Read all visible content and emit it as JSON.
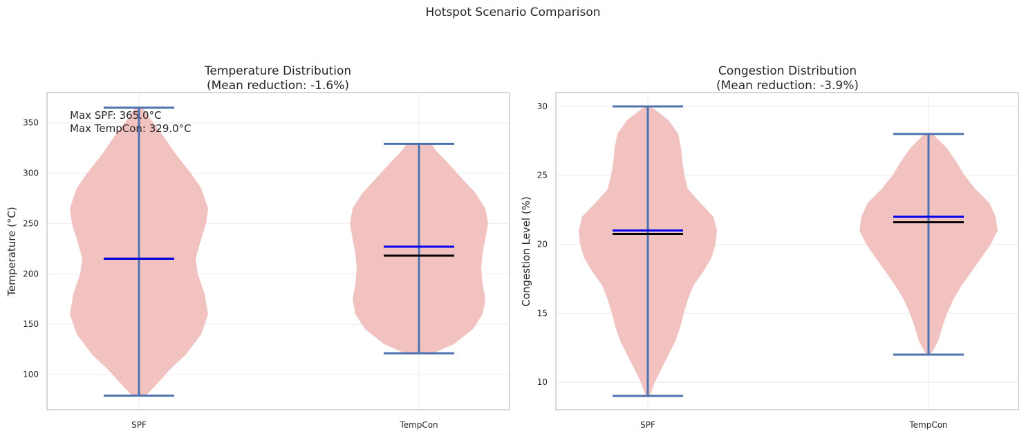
{
  "figure": {
    "suptitle": "Hotspot Scenario Comparison"
  },
  "colors": {
    "violin": "#f2c2c1",
    "whisker": "#4c72b0",
    "median": "#0000ee",
    "mean": "#000000",
    "frame": "#cccccc",
    "grid": "#ebebeb"
  },
  "chart_data": [
    {
      "type": "violin",
      "title_line1": "Temperature Distribution",
      "title_line2": "(Mean reduction: -1.6%)",
      "xlabel": "",
      "ylabel": "Temperature (°C)",
      "ylim": [
        65,
        380
      ],
      "yticks": [
        100,
        150,
        200,
        250,
        300,
        350
      ],
      "categories": [
        "SPF",
        "TempCon"
      ],
      "annotations": [
        "Max SPF: 365.0°C",
        "Max TempCon: 329.0°C"
      ],
      "series": [
        {
          "category": "SPF",
          "min": 79,
          "max": 365,
          "median": 215,
          "mean": 215,
          "density": [
            [
              79,
              10
            ],
            [
              90,
              25
            ],
            [
              105,
              45
            ],
            [
              120,
              68
            ],
            [
              140,
              90
            ],
            [
              160,
              100
            ],
            [
              180,
              95
            ],
            [
              200,
              85
            ],
            [
              215,
              82
            ],
            [
              230,
              88
            ],
            [
              250,
              97
            ],
            [
              265,
              100
            ],
            [
              285,
              90
            ],
            [
              300,
              75
            ],
            [
              320,
              52
            ],
            [
              340,
              32
            ],
            [
              355,
              15
            ],
            [
              365,
              6
            ]
          ]
        },
        {
          "category": "TempCon",
          "min": 121,
          "max": 329,
          "median": 227,
          "mean": 218,
          "density": [
            [
              121,
              20
            ],
            [
              130,
              50
            ],
            [
              145,
              78
            ],
            [
              160,
              92
            ],
            [
              175,
              96
            ],
            [
              190,
              92
            ],
            [
              205,
              90
            ],
            [
              220,
              92
            ],
            [
              235,
              96
            ],
            [
              250,
              100
            ],
            [
              265,
              96
            ],
            [
              280,
              82
            ],
            [
              295,
              62
            ],
            [
              310,
              42
            ],
            [
              322,
              25
            ],
            [
              329,
              18
            ]
          ]
        }
      ]
    },
    {
      "type": "violin",
      "title_line1": "Congestion Distribution",
      "title_line2": "(Mean reduction: -3.9%)",
      "xlabel": "",
      "ylabel": "Congestion Level (%)",
      "ylim": [
        8,
        31
      ],
      "yticks": [
        10,
        15,
        20,
        25,
        30
      ],
      "categories": [
        "SPF",
        "TempCon"
      ],
      "annotations": [],
      "series": [
        {
          "category": "SPF",
          "min": 9,
          "max": 30,
          "median": 21,
          "mean": 20.75,
          "density": [
            [
              9,
              3
            ],
            [
              10,
              10
            ],
            [
              11,
              20
            ],
            [
              12,
              30
            ],
            [
              13,
              40
            ],
            [
              14,
              47
            ],
            [
              15,
              52
            ],
            [
              16,
              58
            ],
            [
              17,
              66
            ],
            [
              18,
              80
            ],
            [
              19,
              92
            ],
            [
              20,
              98
            ],
            [
              21,
              100
            ],
            [
              22,
              95
            ],
            [
              23,
              76
            ],
            [
              24,
              58
            ],
            [
              25,
              53
            ],
            [
              26,
              50
            ],
            [
              27,
              48
            ],
            [
              28,
              44
            ],
            [
              29,
              30
            ],
            [
              29.7,
              12
            ],
            [
              30,
              4
            ]
          ]
        },
        {
          "category": "TempCon",
          "min": 12,
          "max": 28,
          "median": 22,
          "mean": 21.6,
          "density": [
            [
              12,
              3
            ],
            [
              12.5,
              9
            ],
            [
              13,
              14
            ],
            [
              14,
              20
            ],
            [
              15,
              27
            ],
            [
              16,
              36
            ],
            [
              17,
              48
            ],
            [
              18,
              62
            ],
            [
              19,
              76
            ],
            [
              20,
              90
            ],
            [
              21,
              100
            ],
            [
              22,
              97
            ],
            [
              23,
              88
            ],
            [
              24,
              68
            ],
            [
              25,
              52
            ],
            [
              26,
              40
            ],
            [
              27,
              26
            ],
            [
              27.7,
              12
            ],
            [
              28,
              6
            ]
          ]
        }
      ]
    }
  ]
}
